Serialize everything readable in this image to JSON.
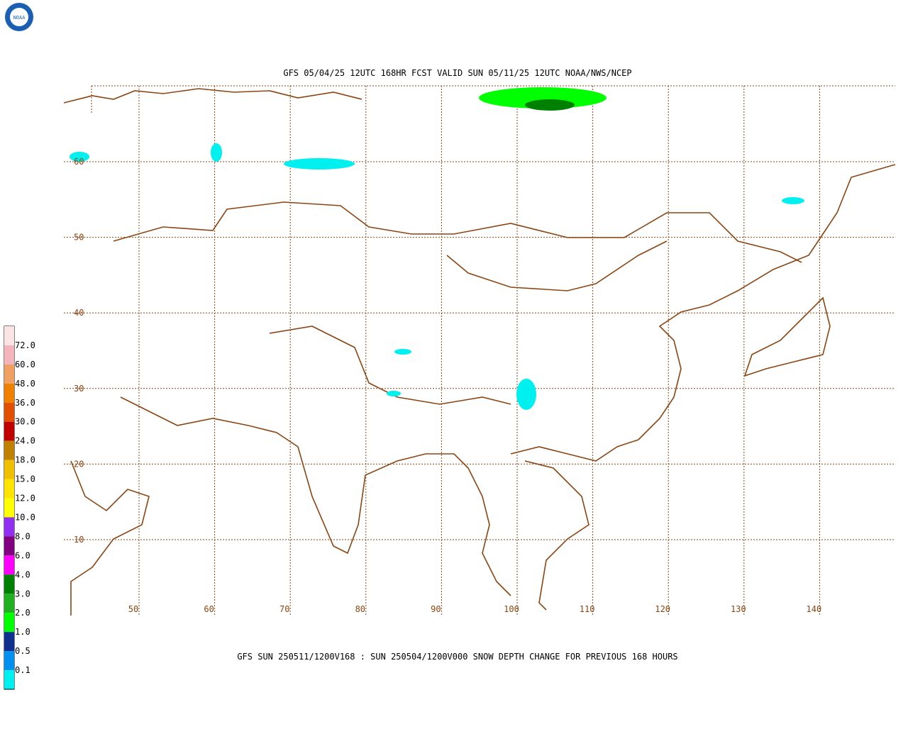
{
  "title": "GFS 05/04/25 12UTC 168HR FCST VALID SUN 05/11/25 12UTC NOAA/NWS/NCEP",
  "footer": "GFS SUN 250511/1200V168 : SUN 250504/1200V000 SNOW DEPTH CHANGE FOR PREVIOUS 168 HOURS",
  "logo": "NOAA",
  "lat_labels": [
    "60",
    "50",
    "40",
    "30",
    "20",
    "10"
  ],
  "lon_labels": [
    "50",
    "60",
    "70",
    "80",
    "90",
    "100",
    "110",
    "120",
    "130",
    "140"
  ],
  "legend": {
    "labels": [
      "72.0",
      "60.0",
      "48.0",
      "36.0",
      "30.0",
      "24.0",
      "18.0",
      "15.0",
      "12.0",
      "10.0",
      "8.0",
      "6.0",
      "4.0",
      "3.0",
      "2.0",
      "1.0",
      "0.5",
      "0.1"
    ],
    "colors": [
      "#fbe4e4",
      "#f4b4bc",
      "#f0a060",
      "#f08000",
      "#e05000",
      "#c00000",
      "#c08000",
      "#f0c000",
      "#ffe400",
      "#ffff00",
      "#9030f0",
      "#800080",
      "#ff00ff",
      "#008000",
      "#20b020",
      "#00ff00",
      "#103090",
      "#0090f0",
      "#00f0f0"
    ]
  }
}
